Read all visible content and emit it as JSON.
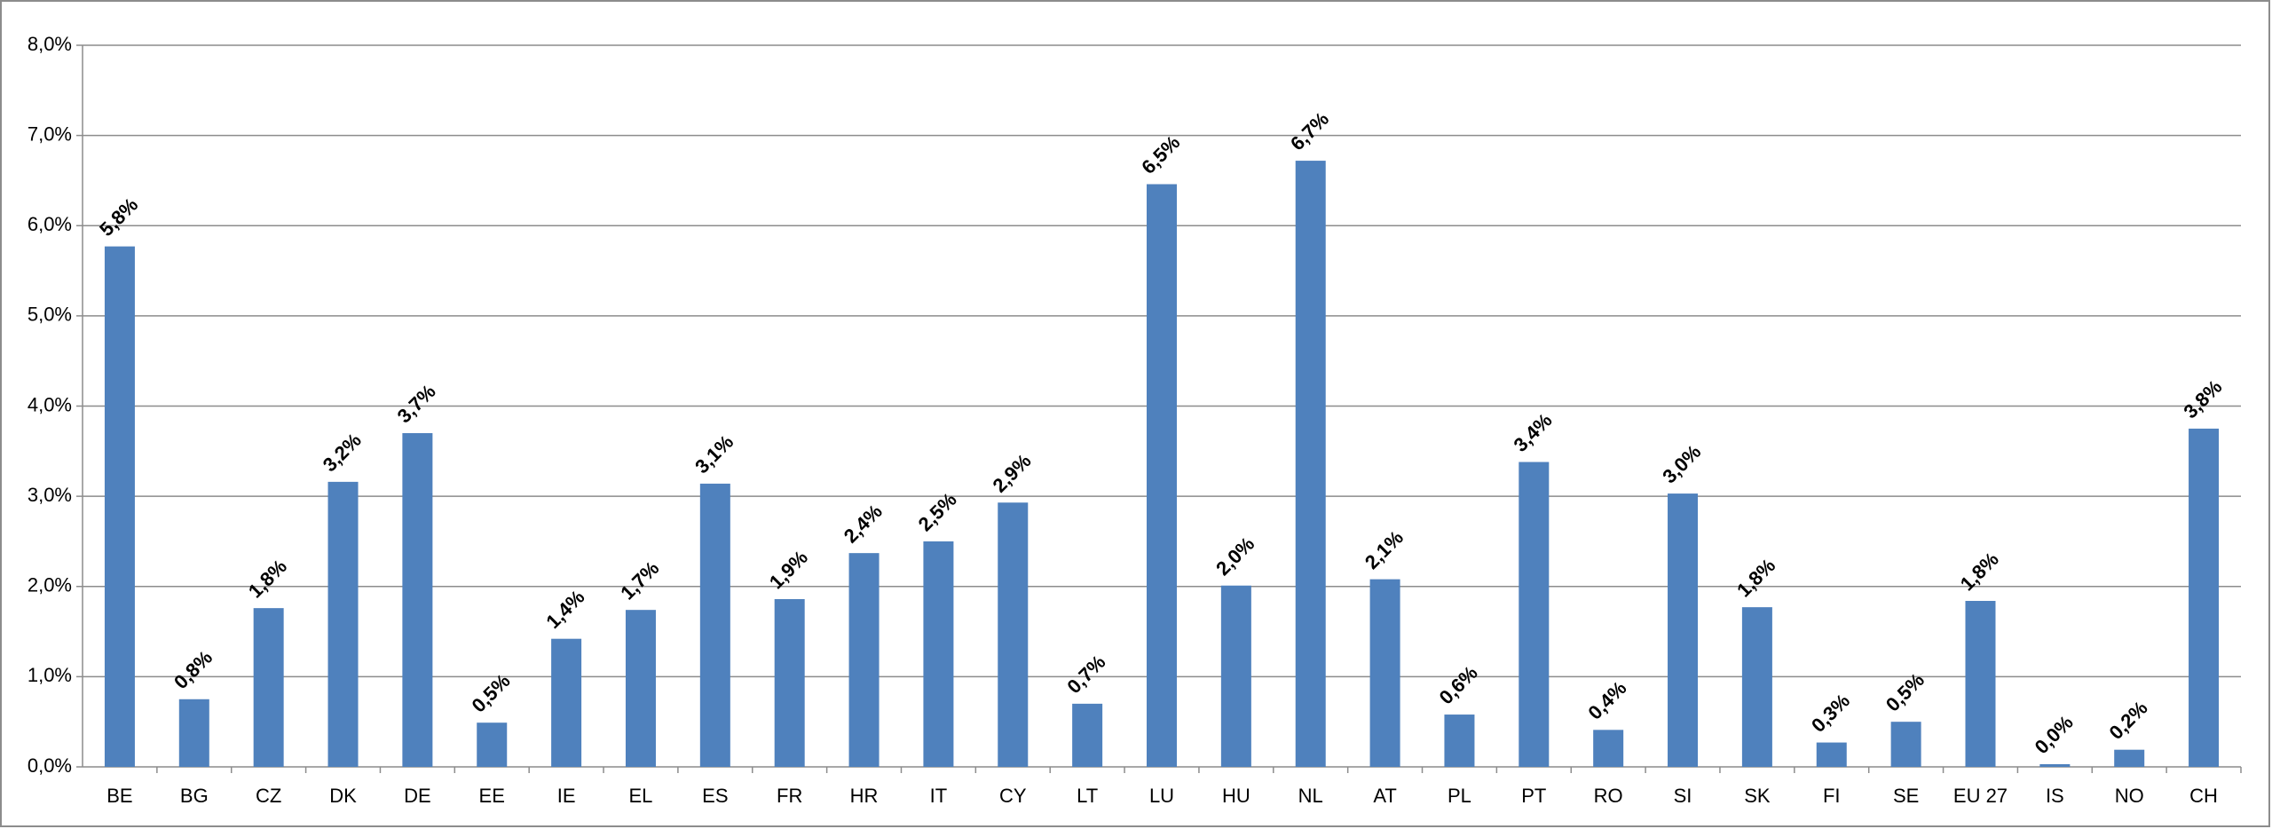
{
  "chart_data": {
    "type": "bar",
    "categories": [
      "BE",
      "BG",
      "CZ",
      "DK",
      "DE",
      "EE",
      "IE",
      "EL",
      "ES",
      "FR",
      "HR",
      "IT",
      "CY",
      "LT",
      "LU",
      "HU",
      "NL",
      "AT",
      "PL",
      "PT",
      "RO",
      "SI",
      "SK",
      "FI",
      "SE",
      "EU 27",
      "IS",
      "NO",
      "CH"
    ],
    "values": [
      5.77,
      0.75,
      1.76,
      3.16,
      3.7,
      0.49,
      1.42,
      1.74,
      3.14,
      1.86,
      2.37,
      2.5,
      2.93,
      0.7,
      6.46,
      2.01,
      6.72,
      2.08,
      0.58,
      3.38,
      0.41,
      3.03,
      1.77,
      0.27,
      0.5,
      1.84,
      0.03,
      0.19,
      3.75
    ],
    "value_labels": [
      "5,8%",
      "0,8%",
      "1,8%",
      "3,2%",
      "3,7%",
      "0,5%",
      "1,4%",
      "1,7%",
      "3,1%",
      "1,9%",
      "2,4%",
      "2,5%",
      "2,9%",
      "0,7%",
      "6,5%",
      "2,0%",
      "6,7%",
      "2,1%",
      "0,6%",
      "3,4%",
      "0,4%",
      "3,0%",
      "1,8%",
      "0,3%",
      "0,5%",
      "1,8%",
      "0,0%",
      "0,2%",
      "3,8%"
    ],
    "color": "#4f81bd",
    "ylim": [
      0,
      8
    ],
    "yticks": [
      {
        "value": 0,
        "label": "0,0%"
      },
      {
        "value": 1,
        "label": "1,0%"
      },
      {
        "value": 2,
        "label": "2,0%"
      },
      {
        "value": 3,
        "label": "3,0%"
      },
      {
        "value": 4,
        "label": "4,0%"
      },
      {
        "value": 5,
        "label": "5,0%"
      },
      {
        "value": 6,
        "label": "6,0%"
      },
      {
        "value": 7,
        "label": "7,0%"
      },
      {
        "value": 8,
        "label": "8,0%"
      }
    ],
    "grid": true
  }
}
